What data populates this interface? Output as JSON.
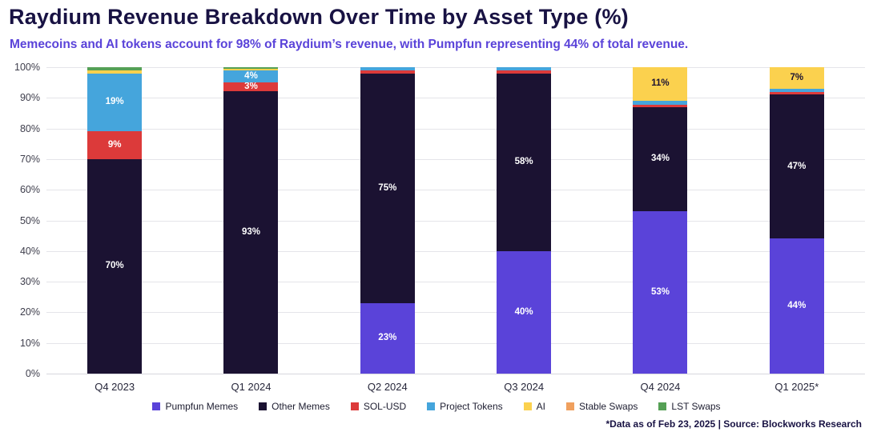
{
  "page": {
    "title": "Raydium Revenue Breakdown Over Time by Asset Type (%)",
    "subtitle": "Memecoins and AI tokens account for 98% of Raydium’s revenue, with Pumpfun representing 44% of total revenue.",
    "footnote": "*Data as of Feb 23, 2025 | Source: Blockworks Research"
  },
  "colors": {
    "title_text": "#181243",
    "subtitle_text": "#5a43d9",
    "gridline": "#e4e4e9",
    "axis_text": "#3e3e4c"
  },
  "chart_data": {
    "type": "bar",
    "stacked": true,
    "title": "Raydium Revenue Breakdown Over Time by Asset Type (%)",
    "subtitle": "Memecoins and AI tokens account for 98% of Raydium’s revenue, with Pumpfun representing 44% of total revenue.",
    "categories": [
      "Q4 2023",
      "Q1 2024",
      "Q2 2024",
      "Q3 2024",
      "Q4 2024",
      "Q1 2025*"
    ],
    "series": [
      {
        "name": "Pumpfun Memes",
        "color": "#5a43d9",
        "label_color": "#ffffff",
        "values": [
          0,
          0,
          23,
          40,
          53,
          44
        ]
      },
      {
        "name": "Other Memes",
        "color": "#1b1232",
        "label_color": "#ffffff",
        "values": [
          70,
          93,
          75,
          58,
          34,
          47
        ]
      },
      {
        "name": "SOL-USD",
        "color": "#dc3a3a",
        "label_color": "#ffffff",
        "values": [
          9,
          3,
          1,
          1,
          0.7,
          1
        ]
      },
      {
        "name": "Project Tokens",
        "color": "#45a5dc",
        "label_color": "#ffffff",
        "values": [
          19,
          4,
          1,
          1,
          1.3,
          1
        ]
      },
      {
        "name": "AI",
        "color": "#fbd14e",
        "label_color": "#1b1232",
        "values": [
          1,
          0.4,
          0,
          0,
          11,
          7
        ]
      },
      {
        "name": "Stable Swaps",
        "color": "#f0a05e",
        "label_color": "#1b1232",
        "values": [
          0,
          0,
          0,
          0,
          0,
          0
        ]
      },
      {
        "name": "LST Swaps",
        "color": "#55a055",
        "label_color": "#ffffff",
        "values": [
          1,
          0.6,
          0,
          0,
          0,
          0
        ]
      }
    ],
    "ylabel": "",
    "ylim": [
      0,
      100
    ],
    "ytick_step": 10,
    "ytick_suffix": "%",
    "grid": true,
    "legend_position": "bottom",
    "data_label_threshold": 3,
    "data_label_suffix": "%"
  }
}
